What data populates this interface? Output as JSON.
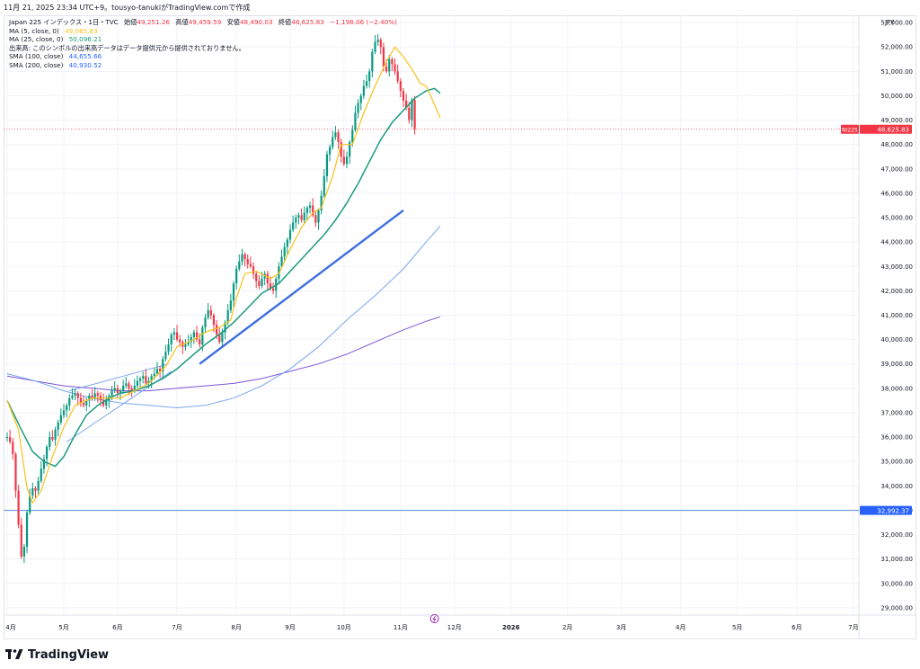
{
  "header": {
    "snapshot_text": "11月 21, 2025 23:34 UTC+9。tousyo-tanukiがTradingView.comで作成"
  },
  "legend": {
    "symbol": "Japan 225 インデックス・1日・TVC",
    "open_label": "始値",
    "open": "49,251.26",
    "high_label": "高値",
    "high": "49,459.59",
    "low_label": "安値",
    "low": "48,490.03",
    "close_label": "終値",
    "close": "48,625.83",
    "change": "−1,198.06 (−2.40%)",
    "ma5_label": "MA (5, close, 0)",
    "ma5_value": "49,065.83",
    "ma25_label": "MA (25, close, 0)",
    "ma25_value": "50,096.21",
    "volume_note": "出来高: このシンボルの出来高データはデータ提供元から提供されておりません。",
    "sma100_label": "SMA (100, close)",
    "sma100_value": "44,655.66",
    "sma200_label": "SMA (200, close)",
    "sma200_value": "40,930.52"
  },
  "currency": "JPY",
  "brand": "TradingView",
  "colors": {
    "up": "#089981",
    "down": "#f23645",
    "ma5": "#f7c21b",
    "ma25": "#1a9a7c",
    "sma100": "#7aa6f0",
    "sma200": "#7d54d8",
    "trendline": "#3d6ee0",
    "hline": "#5b8ad8",
    "price_tag": "#f23645",
    "hline_tag": "#2962ff"
  },
  "chart_data": {
    "type": "candlestick",
    "symbol": "NI225",
    "ylim": [
      28700,
      53300
    ],
    "y_ticks": [
      29000,
      30000,
      31000,
      32000,
      33000,
      34000,
      35000,
      36000,
      37000,
      38000,
      39000,
      40000,
      41000,
      42000,
      43000,
      44000,
      45000,
      46000,
      47000,
      48000,
      49000,
      50000,
      51000,
      52000,
      53000
    ],
    "y_tick_labels": [
      "29,000.00",
      "30,000.00",
      "31,000.00",
      "32,000.00",
      "33,000.00",
      "34,000.00",
      "35,000.00",
      "36,000.00",
      "37,000.00",
      "38,000.00",
      "39,000.00",
      "40,000.00",
      "41,000.00",
      "42,000.00",
      "43,000.00",
      "44,000.00",
      "45,000.00",
      "46,000.00",
      "47,000.00",
      "48,000.00",
      "49,000.00",
      "50,000.00",
      "51,000.00",
      "52,000.00",
      "53,000.00"
    ],
    "x_ticks": [
      {
        "label": "4月",
        "bar": 0
      },
      {
        "label": "5月",
        "bar": 20
      },
      {
        "label": "6月",
        "bar": 39
      },
      {
        "label": "7月",
        "bar": 60
      },
      {
        "label": "8月",
        "bar": 81
      },
      {
        "label": "9月",
        "bar": 100
      },
      {
        "label": "10月",
        "bar": 119
      },
      {
        "label": "11月",
        "bar": 139
      },
      {
        "label": "12月",
        "bar": 158
      },
      {
        "label": "2026",
        "bar": 178
      },
      {
        "label": "2月",
        "bar": 198
      },
      {
        "label": "3月",
        "bar": 217
      },
      {
        "label": "4月",
        "bar": 238
      },
      {
        "label": "5月",
        "bar": 258
      },
      {
        "label": "6月",
        "bar": 279
      },
      {
        "label": "7月",
        "bar": 299
      }
    ],
    "last_price": 48625.83,
    "last_price_label": "48,625.83",
    "hline_value": 32992.37,
    "hline_label": "32,992.37",
    "close_start": 36000,
    "closes": [
      36000,
      35800,
      35300,
      33800,
      32400,
      31100,
      31500,
      32900,
      33600,
      33900,
      33800,
      34200,
      34700,
      35100,
      35600,
      36000,
      35900,
      36300,
      36600,
      36900,
      37100,
      37300,
      37600,
      37700,
      37800,
      37600,
      37400,
      37300,
      37500,
      37700,
      37600,
      37800,
      37700,
      37500,
      37300,
      37500,
      37700,
      37900,
      38000,
      37800,
      37900,
      38100,
      38200,
      38000,
      37900,
      38100,
      38300,
      38400,
      38500,
      38200,
      38300,
      38500,
      38600,
      38800,
      38700,
      39200,
      39500,
      39800,
      40200,
      40300,
      40000,
      39900,
      39700,
      39800,
      39900,
      40100,
      40300,
      40000,
      39800,
      40500,
      40900,
      41200,
      41000,
      40600,
      40200,
      39900,
      40300,
      40700,
      41200,
      41600,
      42300,
      42900,
      43200,
      43500,
      43300,
      43100,
      43000,
      42700,
      42400,
      42200,
      42500,
      42700,
      42300,
      42100,
      42000,
      42500,
      43000,
      43400,
      43800,
      44100,
      44500,
      44800,
      45000,
      45100,
      44900,
      45200,
      45400,
      45500,
      45100,
      44800,
      45300,
      45900,
      46700,
      47600,
      47900,
      48300,
      48500,
      48100,
      47500,
      47200,
      47500,
      48100,
      48600,
      49300,
      49700,
      50000,
      50400,
      50600,
      51000,
      51800,
      52200,
      52300,
      52000,
      51200,
      51000,
      51500,
      51300,
      51000,
      50600,
      50200,
      49800,
      49500,
      49000,
      49824,
      48626
    ],
    "ma5": [
      [
        0,
        37500
      ],
      [
        4,
        36300
      ],
      [
        7,
        33900
      ],
      [
        9,
        33300
      ],
      [
        12,
        33800
      ],
      [
        16,
        35200
      ],
      [
        20,
        36400
      ],
      [
        24,
        37300
      ],
      [
        30,
        37600
      ],
      [
        40,
        37600
      ],
      [
        50,
        38200
      ],
      [
        56,
        38900
      ],
      [
        60,
        39700
      ],
      [
        66,
        40000
      ],
      [
        70,
        40300
      ],
      [
        75,
        40500
      ],
      [
        79,
        40800
      ],
      [
        81,
        41700
      ],
      [
        84,
        42700
      ],
      [
        88,
        42800
      ],
      [
        93,
        42500
      ],
      [
        96,
        42700
      ],
      [
        100,
        43700
      ],
      [
        104,
        44600
      ],
      [
        108,
        45200
      ],
      [
        111,
        45400
      ],
      [
        115,
        46700
      ],
      [
        118,
        48000
      ],
      [
        122,
        48000
      ],
      [
        126,
        49300
      ],
      [
        130,
        50400
      ],
      [
        134,
        51400
      ],
      [
        137,
        52000
      ],
      [
        140,
        51600
      ],
      [
        143,
        51100
      ],
      [
        146,
        50500
      ],
      [
        148,
        50400
      ],
      [
        150,
        49900
      ],
      [
        153,
        49100
      ]
    ],
    "ma25": [
      [
        0,
        37500
      ],
      [
        5,
        36300
      ],
      [
        9,
        35400
      ],
      [
        13,
        35000
      ],
      [
        17,
        34800
      ],
      [
        20,
        35200
      ],
      [
        24,
        36100
      ],
      [
        28,
        36900
      ],
      [
        32,
        37300
      ],
      [
        36,
        37600
      ],
      [
        40,
        37800
      ],
      [
        45,
        37900
      ],
      [
        50,
        38100
      ],
      [
        55,
        38400
      ],
      [
        60,
        38800
      ],
      [
        65,
        39300
      ],
      [
        70,
        39800
      ],
      [
        76,
        40300
      ],
      [
        80,
        40700
      ],
      [
        85,
        41300
      ],
      [
        90,
        41900
      ],
      [
        96,
        42300
      ],
      [
        100,
        42800
      ],
      [
        104,
        43300
      ],
      [
        108,
        43800
      ],
      [
        112,
        44300
      ],
      [
        116,
        44900
      ],
      [
        120,
        45600
      ],
      [
        124,
        46400
      ],
      [
        128,
        47300
      ],
      [
        132,
        48200
      ],
      [
        136,
        48900
      ],
      [
        140,
        49400
      ],
      [
        144,
        49900
      ],
      [
        148,
        50200
      ],
      [
        151,
        50300
      ],
      [
        153,
        50100
      ]
    ],
    "sma100": [
      [
        0,
        38600
      ],
      [
        10,
        38300
      ],
      [
        20,
        37900
      ],
      [
        30,
        37600
      ],
      [
        40,
        37400
      ],
      [
        50,
        37300
      ],
      [
        60,
        37200
      ],
      [
        70,
        37300
      ],
      [
        80,
        37600
      ],
      [
        90,
        38100
      ],
      [
        100,
        38800
      ],
      [
        110,
        39700
      ],
      [
        120,
        40800
      ],
      [
        130,
        41800
      ],
      [
        140,
        42900
      ],
      [
        148,
        44000
      ],
      [
        153,
        44650
      ]
    ],
    "sma200": [
      [
        0,
        38500
      ],
      [
        10,
        38300
      ],
      [
        20,
        38100
      ],
      [
        30,
        38000
      ],
      [
        40,
        37900
      ],
      [
        50,
        37900
      ],
      [
        60,
        38000
      ],
      [
        70,
        38100
      ],
      [
        80,
        38200
      ],
      [
        90,
        38400
      ],
      [
        100,
        38700
      ],
      [
        110,
        39000
      ],
      [
        120,
        39400
      ],
      [
        130,
        39900
      ],
      [
        140,
        40400
      ],
      [
        148,
        40750
      ],
      [
        153,
        40930
      ]
    ],
    "trendline_lower": [
      [
        21,
        35800
      ],
      [
        58,
        38700
      ]
    ],
    "trendline_upper": [
      [
        22,
        37900
      ],
      [
        57,
        39000
      ]
    ],
    "trendline_blue": [
      [
        68,
        39000
      ],
      [
        140,
        45300
      ]
    ]
  }
}
